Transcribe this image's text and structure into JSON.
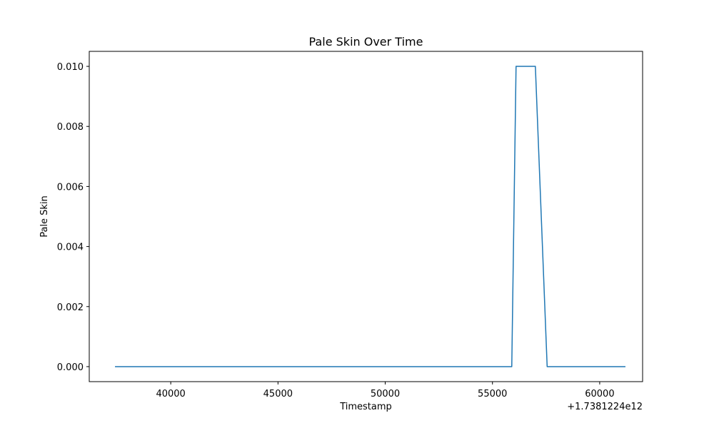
{
  "chart_data": {
    "type": "line",
    "title": "Pale Skin Over Time",
    "xlabel": "Timestamp",
    "ylabel": "Pale Skin",
    "x_offset_label": "+1.7381224e12",
    "xlim": [
      36200,
      62000
    ],
    "ylim": [
      -0.0005,
      0.0105
    ],
    "xticks": [
      40000,
      45000,
      50000,
      55000,
      60000
    ],
    "xtick_labels": [
      "40000",
      "45000",
      "50000",
      "55000",
      "60000"
    ],
    "yticks": [
      0.0,
      0.002,
      0.004,
      0.006,
      0.008,
      0.01
    ],
    "ytick_labels": [
      "0.000",
      "0.002",
      "0.004",
      "0.006",
      "0.008",
      "0.010"
    ],
    "grid": false,
    "line_color": "#1f77b4",
    "series": [
      {
        "x": [
          37400,
          55900,
          56100,
          57000,
          57550,
          61200
        ],
        "y": [
          0.0,
          0.0,
          0.01,
          0.01,
          0.0,
          0.0
        ]
      }
    ]
  }
}
